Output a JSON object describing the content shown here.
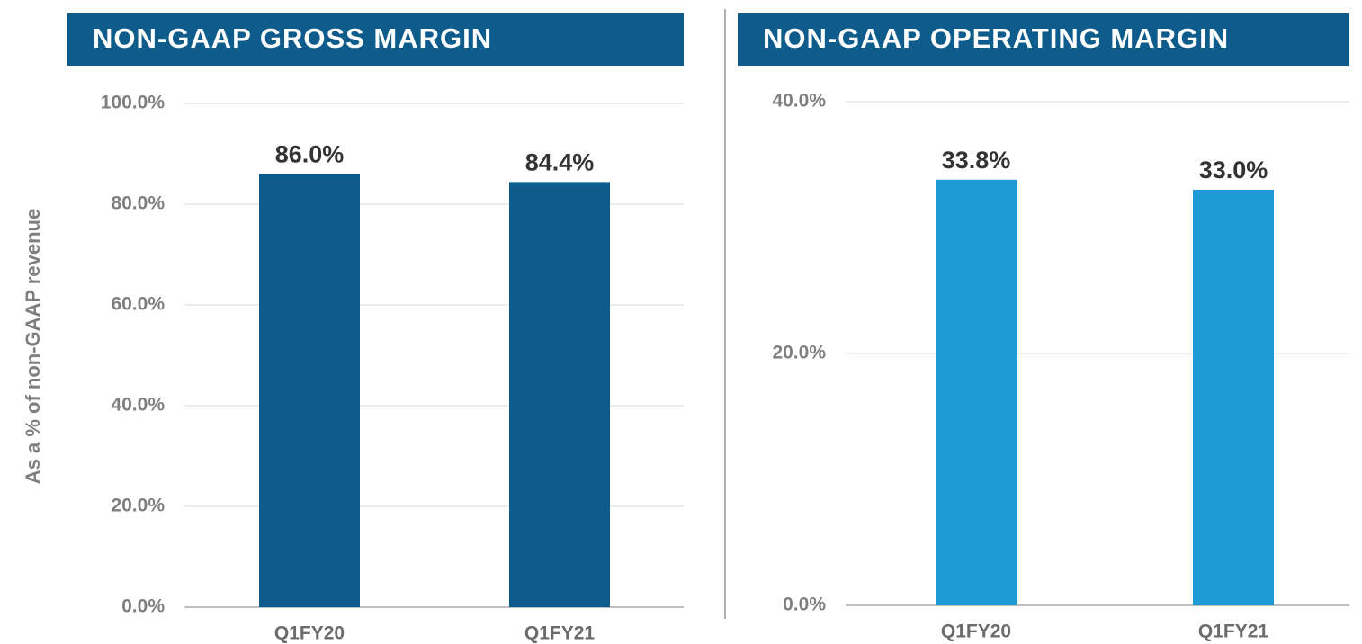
{
  "chart_data": [
    {
      "type": "bar",
      "title": "NON-GAAP GROSS MARGIN",
      "y_label": "As a % of non-GAAP revenue",
      "categories": [
        "Q1FY20",
        "Q1FY21"
      ],
      "values": [
        86.0,
        84.4
      ],
      "value_labels": [
        "86.0%",
        "84.4%"
      ],
      "color": "#0d5c8c",
      "ylim": [
        0,
        100
      ],
      "yticks": [
        {
          "value": 0,
          "label": "0.0%"
        },
        {
          "value": 20,
          "label": "20.0%"
        },
        {
          "value": 40,
          "label": "40.0%"
        },
        {
          "value": 60,
          "label": "60.0%"
        },
        {
          "value": 80,
          "label": "80.0%"
        },
        {
          "value": 100,
          "label": "100.0%"
        }
      ],
      "grid": true
    },
    {
      "type": "bar",
      "title": "NON-GAAP OPERATING MARGIN",
      "categories": [
        "Q1FY20",
        "Q1FY21"
      ],
      "values": [
        33.8,
        33.0
      ],
      "value_labels": [
        "33.8%",
        "33.0%"
      ],
      "color": "#1e9ad6",
      "ylim": [
        0,
        40
      ],
      "yticks": [
        {
          "value": 0,
          "label": "0.0%"
        },
        {
          "value": 20,
          "label": "20.0%"
        },
        {
          "value": 40,
          "label": "40.0%"
        }
      ],
      "grid": true
    }
  ]
}
